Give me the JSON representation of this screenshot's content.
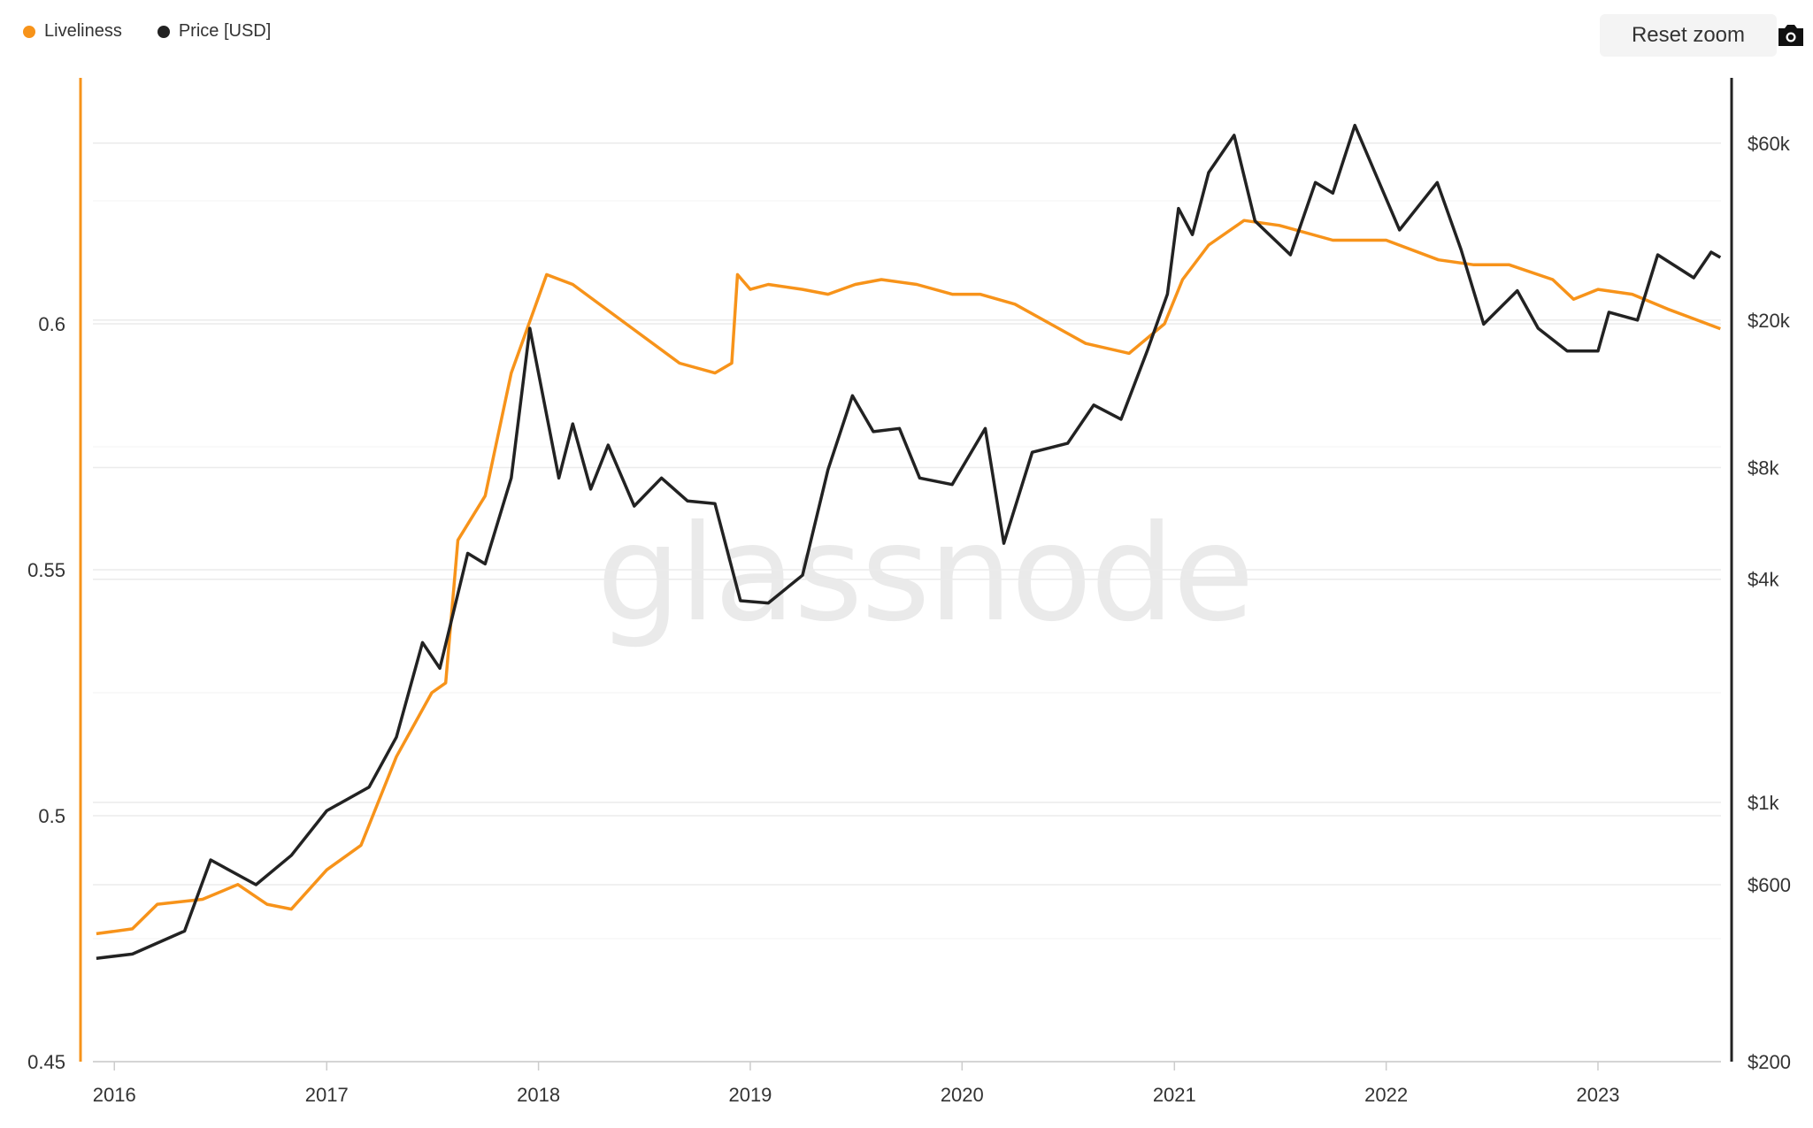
{
  "legend": {
    "items": [
      {
        "label": "Liveliness",
        "color": "#f7931a"
      },
      {
        "label": "Price [USD]",
        "color": "#222222"
      }
    ]
  },
  "toolbar": {
    "reset_zoom_label": "Reset zoom",
    "camera_icon": "camera-icon"
  },
  "watermark": "glassnode",
  "chart_data": {
    "type": "line",
    "grid": true,
    "legend_position": "top-left",
    "x_axis": {
      "range": [
        "2015-11-25",
        "2023-08-01"
      ],
      "tick_labels": [
        "2016",
        "2017",
        "2018",
        "2019",
        "2020",
        "2021",
        "2022",
        "2023"
      ]
    },
    "y_left": {
      "range": [
        0.45,
        0.65
      ],
      "tick_labels": [
        "0.45",
        "0.5",
        "0.55",
        "0.6"
      ],
      "tick_values": [
        0.45,
        0.5,
        0.55,
        0.6
      ]
    },
    "y_right": {
      "scale": "log",
      "range": [
        200,
        90000
      ],
      "tick_labels": [
        "$200",
        "$600",
        "$1k",
        "$4k",
        "$8k",
        "$20k",
        "$60k"
      ],
      "tick_values": [
        200,
        600,
        1000,
        4000,
        8000,
        20000,
        60000
      ]
    },
    "series": [
      {
        "name": "Liveliness",
        "axis": "left",
        "color": "#f7931a",
        "x": [
          "2015-12-01",
          "2016-02-01",
          "2016-03-15",
          "2016-06-01",
          "2016-08-01",
          "2016-09-20",
          "2016-11-01",
          "2017-01-01",
          "2017-03-01",
          "2017-05-01",
          "2017-07-01",
          "2017-07-25",
          "2017-08-15",
          "2017-10-01",
          "2017-11-15",
          "2018-01-15",
          "2018-03-01",
          "2018-06-01",
          "2018-09-01",
          "2018-11-01",
          "2018-11-30",
          "2018-12-10",
          "2019-01-01",
          "2019-02-01",
          "2019-04-01",
          "2019-05-15",
          "2019-07-01",
          "2019-08-15",
          "2019-10-15",
          "2019-12-15",
          "2020-02-01",
          "2020-04-01",
          "2020-06-01",
          "2020-08-01",
          "2020-10-15",
          "2020-12-15",
          "2021-01-15",
          "2021-03-01",
          "2021-05-01",
          "2021-07-01",
          "2021-10-01",
          "2022-01-01",
          "2022-04-01",
          "2022-06-01",
          "2022-08-01",
          "2022-10-15",
          "2022-11-20",
          "2023-01-01",
          "2023-03-01",
          "2023-05-01",
          "2023-07-31"
        ],
        "values": [
          0.476,
          0.477,
          0.482,
          0.483,
          0.486,
          0.482,
          0.481,
          0.489,
          0.494,
          0.512,
          0.525,
          0.527,
          0.556,
          0.565,
          0.59,
          0.61,
          0.608,
          0.6,
          0.592,
          0.59,
          0.592,
          0.61,
          0.607,
          0.608,
          0.607,
          0.606,
          0.608,
          0.609,
          0.608,
          0.606,
          0.606,
          0.604,
          0.6,
          0.596,
          0.594,
          0.6,
          0.609,
          0.616,
          0.621,
          0.62,
          0.617,
          0.617,
          0.613,
          0.612,
          0.612,
          0.609,
          0.605,
          0.607,
          0.606,
          0.603,
          0.599
        ]
      },
      {
        "name": "Price [USD]",
        "axis": "right",
        "color": "#222222",
        "x": [
          "2015-12-01",
          "2016-02-01",
          "2016-05-01",
          "2016-06-15",
          "2016-09-01",
          "2016-11-01",
          "2017-01-01",
          "2017-03-15",
          "2017-05-01",
          "2017-06-15",
          "2017-07-15",
          "2017-09-01",
          "2017-10-01",
          "2017-11-15",
          "2017-12-17",
          "2018-02-05",
          "2018-03-01",
          "2018-04-01",
          "2018-05-01",
          "2018-06-15",
          "2018-08-01",
          "2018-09-15",
          "2018-11-01",
          "2018-12-15",
          "2019-02-01",
          "2019-04-01",
          "2019-05-15",
          "2019-06-26",
          "2019-08-01",
          "2019-09-15",
          "2019-10-20",
          "2019-12-15",
          "2020-02-10",
          "2020-03-13",
          "2020-05-01",
          "2020-07-01",
          "2020-08-15",
          "2020-10-01",
          "2020-11-15",
          "2020-12-20",
          "2021-01-08",
          "2021-02-01",
          "2021-03-01",
          "2021-04-14",
          "2021-05-20",
          "2021-07-20",
          "2021-09-01",
          "2021-10-01",
          "2021-11-08",
          "2021-12-15",
          "2022-01-24",
          "2022-03-30",
          "2022-05-10",
          "2022-06-18",
          "2022-08-15",
          "2022-09-20",
          "2022-11-09",
          "2023-01-01",
          "2023-01-20",
          "2023-03-10",
          "2023-04-14",
          "2023-06-15",
          "2023-07-15",
          "2023-07-31"
        ],
        "values": [
          380,
          390,
          450,
          700,
          600,
          720,
          950,
          1100,
          1500,
          2700,
          2300,
          4700,
          4400,
          7500,
          19000,
          7500,
          10500,
          7000,
          9200,
          6300,
          7500,
          6500,
          6400,
          3500,
          3450,
          4100,
          7900,
          12500,
          10000,
          10200,
          7500,
          7200,
          10200,
          5000,
          8800,
          9300,
          11800,
          10800,
          16500,
          23500,
          40000,
          34000,
          50000,
          63000,
          37000,
          30000,
          47000,
          44000,
          67000,
          49000,
          35000,
          47000,
          31000,
          19500,
          24000,
          19000,
          16500,
          16500,
          21000,
          20000,
          30000,
          26000,
          30500,
          29500
        ]
      }
    ]
  }
}
